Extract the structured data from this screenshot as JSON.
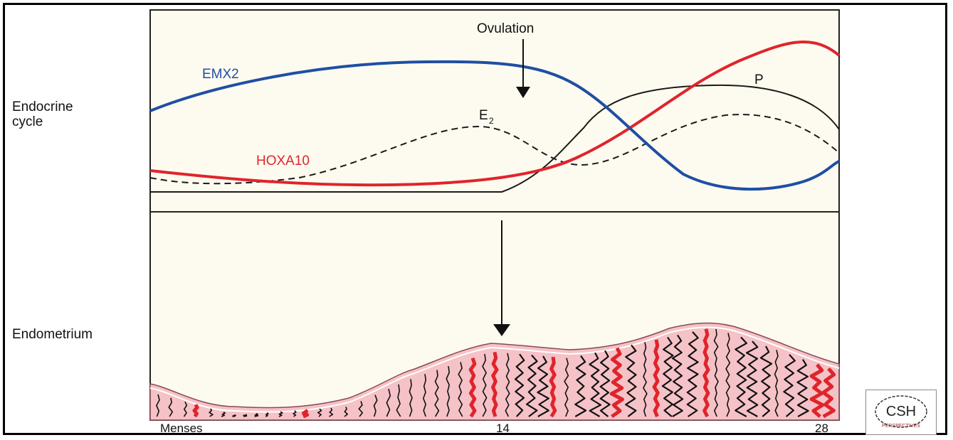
{
  "labels": {
    "endocrine_cycle": "Endocrine\ncycle",
    "endometrium": "Endometrium",
    "ovulation": "Ovulation",
    "emx2": "EMX2",
    "hoxa10": "HOXA10",
    "e2_main": "E",
    "e2_sub": "2",
    "p": "P"
  },
  "axis": {
    "start": "Menses",
    "mid": "14",
    "end": "28"
  },
  "logo": {
    "text": "CSH",
    "subtext": "PERSPECTIVES"
  },
  "colors": {
    "emx2": "#1f4fa3",
    "hoxa10": "#e0242b",
    "hormone": "#1a1a1a",
    "panel_bg": "#fdfbf0",
    "tissue": "#f5c2c7",
    "gland_red": "#e0242b"
  }
}
